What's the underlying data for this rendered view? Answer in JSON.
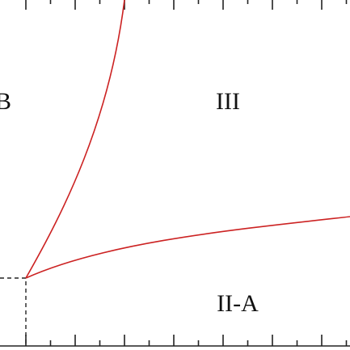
{
  "regions": [
    {
      "label": "B"
    },
    {
      "label": "III"
    },
    {
      "label": "II-A"
    }
  ]
}
